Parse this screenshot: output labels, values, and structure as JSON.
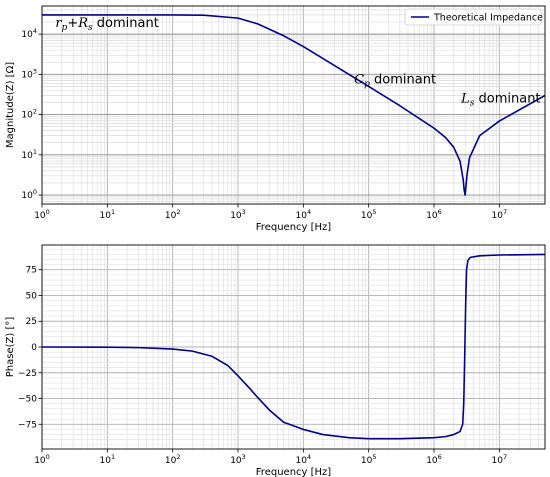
{
  "chart_data": [
    {
      "type": "line",
      "xscale": "log",
      "yscale": "log",
      "xlabel": "Frequency [Hz]",
      "ylabel": "Magnitude(Z) [Ω]",
      "xlim": [
        1,
        50000000
      ],
      "ylim": [
        0.6,
        50000
      ],
      "grid": true,
      "grid_minor": true,
      "legend_position": "top-right",
      "x_tick_labels": [
        "10^0",
        "10^1",
        "10^2",
        "10^3",
        "10^4",
        "10^5",
        "10^6",
        "10^7"
      ],
      "y_tick_labels": [
        "10^0",
        "10^1",
        "10^2",
        "10^3",
        "10^4"
      ],
      "series": [
        {
          "name": "Theoretical Impedance",
          "color": "#00008b",
          "x": [
            1,
            10,
            100,
            300,
            1000,
            2000,
            5000,
            10000,
            30000,
            100000,
            300000,
            1000000,
            1500000,
            2000000,
            2500000,
            2800000,
            2900000,
            3000000,
            3200000,
            3500000,
            5000000,
            10000000,
            50000000
          ],
          "y": [
            30000,
            30000,
            29990,
            29500,
            25000,
            18000,
            9100,
            4900,
            1650,
            500,
            166,
            46,
            27,
            15.5,
            7,
            2.4,
            1.3,
            1.0,
            3.2,
            8.5,
            30,
            69,
            300
          ]
        }
      ],
      "annotations": [
        {
          "parts": [
            {
              "t": "r",
              "it": true
            },
            {
              "t": "p",
              "it": true,
              "sub": true
            },
            {
              "t": "+",
              "it": false
            },
            {
              "t": "R",
              "it": true
            },
            {
              "t": "s",
              "it": true,
              "sub": true
            },
            {
              "t": " dominant",
              "it": false
            }
          ],
          "x": 1.6,
          "y": 15000
        },
        {
          "parts": [
            {
              "t": "C",
              "it": true
            },
            {
              "t": "p",
              "it": true,
              "sub": true
            },
            {
              "t": " dominant",
              "it": false
            }
          ],
          "x": 60000,
          "y": 600
        },
        {
          "parts": [
            {
              "t": "L",
              "it": true
            },
            {
              "t": "s",
              "it": true,
              "sub": true
            },
            {
              "t": " dominant",
              "it": false
            }
          ],
          "x": 2600000,
          "y": 200
        }
      ]
    },
    {
      "type": "line",
      "xscale": "log",
      "yscale": "linear",
      "xlabel": "Frequency [Hz]",
      "ylabel": "Phase(Z) [°]",
      "xlim": [
        1,
        50000000
      ],
      "ylim": [
        -99,
        99
      ],
      "grid": true,
      "grid_minor": true,
      "x_tick_labels": [
        "10^0",
        "10^1",
        "10^2",
        "10^3",
        "10^4",
        "10^5",
        "10^6",
        "10^7"
      ],
      "y_ticks": [
        -75,
        -50,
        -25,
        0,
        25,
        50,
        75
      ],
      "series": [
        {
          "name": "Theoretical Impedance",
          "color": "#00008b",
          "x": [
            1,
            10,
            30,
            100,
            200,
            400,
            700,
            1000,
            1500,
            2000,
            3000,
            5000,
            10000,
            20000,
            50000,
            100000,
            300000,
            1000000,
            1500000,
            2000000,
            2500000,
            2750000,
            2850000,
            2950000,
            3050000,
            3150000,
            3300000,
            3600000,
            5000000,
            10000000,
            50000000
          ],
          "y": [
            0,
            -0.2,
            -0.6,
            -2,
            -4,
            -9,
            -18,
            -28,
            -40,
            -49,
            -61,
            -73,
            -80,
            -85,
            -88,
            -89,
            -89,
            -88,
            -87,
            -85,
            -82,
            -75,
            -55,
            -10,
            40,
            75,
            84,
            87,
            88.5,
            89.3,
            89.8
          ]
        }
      ]
    }
  ]
}
